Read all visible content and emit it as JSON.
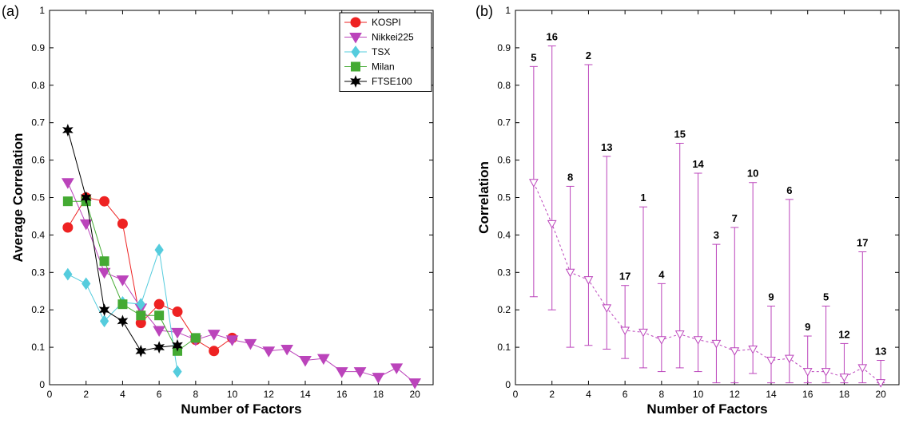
{
  "chart_data": [
    {
      "panel_label": "(a)",
      "type": "line",
      "xlabel": "Number of Factors",
      "ylabel": "Average Correlation",
      "xlim": [
        0,
        21
      ],
      "ylim": [
        0,
        1
      ],
      "xticks": [
        0,
        2,
        4,
        6,
        8,
        10,
        12,
        14,
        16,
        18,
        20
      ],
      "yticks": [
        0,
        0.1,
        0.2,
        0.3,
        0.4,
        0.5,
        0.6,
        0.7,
        0.8,
        0.9,
        1
      ],
      "grid": false,
      "legend_position": "top-right",
      "series": [
        {
          "name": "KOSPI",
          "color": "#ee2222",
          "marker": "circle",
          "x": [
            1,
            2,
            3,
            4,
            5,
            6,
            7,
            8,
            9,
            10
          ],
          "y": [
            0.42,
            0.5,
            0.49,
            0.43,
            0.165,
            0.215,
            0.195,
            0.12,
            0.09,
            0.125
          ]
        },
        {
          "name": "Nikkei225",
          "color": "#bb44bb",
          "marker": "triangle-down",
          "x": [
            1,
            2,
            3,
            4,
            5,
            6,
            7,
            8,
            9,
            10,
            11,
            12,
            13,
            14,
            15,
            16,
            17,
            18,
            19,
            20
          ],
          "y": [
            0.54,
            0.43,
            0.3,
            0.28,
            0.205,
            0.145,
            0.14,
            0.12,
            0.135,
            0.12,
            0.11,
            0.09,
            0.095,
            0.065,
            0.07,
            0.035,
            0.035,
            0.02,
            0.045,
            0.005
          ]
        },
        {
          "name": "TSX",
          "color": "#55ccdd",
          "marker": "diamond",
          "x": [
            1,
            2,
            3,
            4,
            5,
            6,
            7
          ],
          "y": [
            0.295,
            0.27,
            0.17,
            0.22,
            0.215,
            0.36,
            0.035
          ]
        },
        {
          "name": "Milan",
          "color": "#44aa33",
          "marker": "square",
          "x": [
            1,
            2,
            3,
            4,
            5,
            6,
            7,
            8
          ],
          "y": [
            0.49,
            0.49,
            0.33,
            0.215,
            0.185,
            0.185,
            0.09,
            0.125
          ]
        },
        {
          "name": "FTSE100",
          "color": "#000000",
          "marker": "star",
          "x": [
            1,
            2,
            3,
            4,
            5,
            6,
            7
          ],
          "y": [
            0.68,
            0.5,
            0.2,
            0.17,
            0.09,
            0.1,
            0.105
          ]
        }
      ]
    },
    {
      "panel_label": "(b)",
      "type": "line",
      "xlabel": "Number of Factors",
      "ylabel": "Correlation",
      "xlim": [
        0,
        21
      ],
      "ylim": [
        0,
        1
      ],
      "xticks": [
        0,
        2,
        4,
        6,
        8,
        10,
        12,
        14,
        16,
        18,
        20
      ],
      "yticks": [
        0,
        0.1,
        0.2,
        0.3,
        0.4,
        0.5,
        0.6,
        0.7,
        0.8,
        0.9,
        1
      ],
      "grid": false,
      "color": "#bb44bb",
      "marker": "triangle-down-open",
      "x": [
        1,
        2,
        3,
        4,
        5,
        6,
        7,
        8,
        9,
        10,
        11,
        12,
        13,
        14,
        15,
        16,
        17,
        18,
        19,
        20
      ],
      "mean": [
        0.54,
        0.43,
        0.3,
        0.28,
        0.205,
        0.145,
        0.14,
        0.12,
        0.135,
        0.12,
        0.11,
        0.09,
        0.095,
        0.065,
        0.07,
        0.035,
        0.035,
        0.02,
        0.045,
        0.005
      ],
      "lower": [
        0.235,
        0.2,
        0.1,
        0.105,
        0.095,
        0.07,
        0.045,
        0.035,
        0.045,
        0.035,
        0.005,
        0.005,
        0.03,
        0.005,
        0.005,
        0.005,
        0.005,
        0.005,
        0.005,
        0.005
      ],
      "upper": [
        0.85,
        0.905,
        0.53,
        0.855,
        0.61,
        0.265,
        0.475,
        0.27,
        0.645,
        0.565,
        0.375,
        0.42,
        0.54,
        0.21,
        0.495,
        0.13,
        0.21,
        0.11,
        0.355,
        0.065
      ],
      "annotations": [
        "5",
        "16",
        "8",
        "2",
        "13",
        "17",
        "1",
        "4",
        "15",
        "14",
        "3",
        "7",
        "10",
        "9",
        "6",
        "9",
        "5",
        "12",
        "17",
        "13"
      ]
    }
  ]
}
